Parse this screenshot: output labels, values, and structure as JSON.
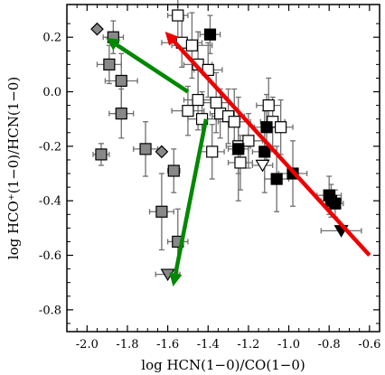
{
  "chart_data": {
    "type": "scatter",
    "title": "",
    "xlabel": "log HCN(1−0)/CO(1−0)",
    "ylabel": "log HCO⁺(1−0)/HCN(1−0)",
    "xlim": [
      -2.1,
      -0.55
    ],
    "ylim": [
      -0.88,
      0.32
    ],
    "xticks": [
      -2.0,
      -1.8,
      -1.6,
      -1.4,
      -1.2,
      -1.0,
      -0.8,
      -0.6
    ],
    "xtick_labels": [
      "-2.0",
      "-1.8",
      "-1.6",
      "-1.4",
      "-1.2",
      "-1.0",
      "-0.8",
      "-0.6"
    ],
    "yticks": [
      -0.8,
      -0.6,
      -0.4,
      -0.2,
      0.0,
      0.2
    ],
    "ytick_labels": [
      "-0.8",
      "-0.6",
      "-0.4",
      "-0.2",
      "0.0",
      "0.2"
    ],
    "grid": false,
    "colors": {
      "gray": "#888888",
      "black": "#000000",
      "open": "#ffffff",
      "red_arrow": "#ee0000",
      "green_arrow": "#008800",
      "errorbar": "#707070"
    },
    "series": [
      {
        "marker": "square",
        "fill": "gray",
        "points": [
          {
            "x": -1.87,
            "y": 0.2,
            "xerr": 0.05,
            "yerr": 0.06
          },
          {
            "x": -1.89,
            "y": 0.1,
            "xerr": 0.06,
            "yerr": 0.07
          },
          {
            "x": -1.83,
            "y": 0.04,
            "xerr": 0.08,
            "yerr": 0.1
          },
          {
            "x": -1.83,
            "y": -0.08,
            "xerr": 0.06,
            "yerr": 0.09
          },
          {
            "x": -1.93,
            "y": -0.23,
            "xerr": 0.04,
            "yerr": 0.04
          },
          {
            "x": -1.71,
            "y": -0.21,
            "xerr": 0.06,
            "yerr": 0.1
          },
          {
            "x": -1.57,
            "y": -0.29,
            "xerr": 0.03,
            "yerr": 0.08
          },
          {
            "x": -1.63,
            "y": -0.44,
            "xerr": 0.06,
            "yerr": 0.14
          },
          {
            "x": -1.55,
            "y": -0.55,
            "xerr": 0.05,
            "yerr": 0.12
          }
        ]
      },
      {
        "marker": "diamond",
        "fill": "gray",
        "points": [
          {
            "x": -1.95,
            "y": 0.23,
            "xerr": 0,
            "yerr": 0
          },
          {
            "x": -1.63,
            "y": -0.22,
            "xerr": 0,
            "yerr": 0
          }
        ]
      },
      {
        "marker": "triangle-down",
        "fill": "gray",
        "points": [
          {
            "x": -1.6,
            "y": -0.67,
            "xerr": 0.06,
            "yerr": 0
          }
        ]
      },
      {
        "marker": "square",
        "fill": "open",
        "points": [
          {
            "x": -1.55,
            "y": 0.28,
            "xerr": 0.05,
            "yerr": 0.08
          },
          {
            "x": -1.53,
            "y": 0.18,
            "xerr": 0.1,
            "yerr": 0.09
          },
          {
            "x": -1.48,
            "y": 0.17,
            "xerr": 0.1,
            "yerr": 0.12
          },
          {
            "x": -1.45,
            "y": 0.1,
            "xerr": 0.07,
            "yerr": 0.12
          },
          {
            "x": -1.4,
            "y": 0.08,
            "xerr": 0.07,
            "yerr": 0.1
          },
          {
            "x": -1.5,
            "y": -0.07,
            "xerr": 0.08,
            "yerr": 0.09
          },
          {
            "x": -1.45,
            "y": -0.03,
            "xerr": 0.07,
            "yerr": 0.11
          },
          {
            "x": -1.43,
            "y": -0.1,
            "xerr": 0.07,
            "yerr": 0.1
          },
          {
            "x": -1.36,
            "y": -0.04,
            "xerr": 0.07,
            "yerr": 0.11
          },
          {
            "x": -1.34,
            "y": -0.08,
            "xerr": 0.05,
            "yerr": 0.09
          },
          {
            "x": -1.3,
            "y": -0.09,
            "xerr": 0.08,
            "yerr": 0.1
          },
          {
            "x": -1.27,
            "y": -0.11,
            "xerr": 0.08,
            "yerr": 0.12
          },
          {
            "x": -1.25,
            "y": -0.2,
            "xerr": 0.06,
            "yerr": 0.1
          },
          {
            "x": -1.2,
            "y": -0.18,
            "xerr": 0.07,
            "yerr": 0.1
          },
          {
            "x": -1.24,
            "y": -0.26,
            "xerr": 0.06,
            "yerr": 0.1
          },
          {
            "x": -1.1,
            "y": -0.05,
            "xerr": 0.06,
            "yerr": 0.1
          },
          {
            "x": -1.08,
            "y": -0.11,
            "xerr": 0.06,
            "yerr": 0.09
          },
          {
            "x": -1.04,
            "y": -0.13,
            "xerr": 0.06,
            "yerr": 0.1
          },
          {
            "x": -1.38,
            "y": -0.22,
            "xerr": 0.06,
            "yerr": 0.1
          }
        ]
      },
      {
        "marker": "square",
        "fill": "black",
        "points": [
          {
            "x": -1.39,
            "y": 0.21,
            "xerr": 0.05,
            "yerr": 0.07
          },
          {
            "x": -1.25,
            "y": -0.21,
            "xerr": 0.05,
            "yerr": 0.19
          },
          {
            "x": -1.11,
            "y": -0.13,
            "xerr": 0.06,
            "yerr": 0.12
          },
          {
            "x": -1.12,
            "y": -0.22,
            "xerr": 0.06,
            "yerr": 0.15
          },
          {
            "x": -1.06,
            "y": -0.32,
            "xerr": 0.06,
            "yerr": 0.12
          },
          {
            "x": -0.98,
            "y": -0.3,
            "xerr": 0.07,
            "yerr": 0.12
          },
          {
            "x": -0.8,
            "y": -0.38,
            "xerr": 0.06,
            "yerr": 0.07
          },
          {
            "x": -0.77,
            "y": -0.41,
            "xerr": 0.04,
            "yerr": 0.05
          },
          {
            "x": -0.79,
            "y": -0.4,
            "xerr": 0.05,
            "yerr": 0.06
          }
        ]
      },
      {
        "marker": "triangle-down",
        "fill": "open",
        "points": [
          {
            "x": -1.13,
            "y": -0.27,
            "xerr": 0.05,
            "yerr": 0
          }
        ]
      },
      {
        "marker": "triangle-down",
        "fill": "black",
        "points": [
          {
            "x": -0.74,
            "y": -0.51,
            "xerr": 0.1,
            "yerr": 0
          }
        ]
      }
    ],
    "arrows": [
      {
        "color": "red_arrow",
        "from": [
          -0.6,
          -0.6
        ],
        "to": [
          -1.6,
          0.21
        ]
      },
      {
        "color": "green_arrow",
        "from": [
          -1.5,
          0.0
        ],
        "to": [
          -1.89,
          0.19
        ]
      },
      {
        "color": "green_arrow",
        "from": [
          -1.41,
          -0.1
        ],
        "to": [
          -1.57,
          -0.7
        ]
      }
    ]
  }
}
